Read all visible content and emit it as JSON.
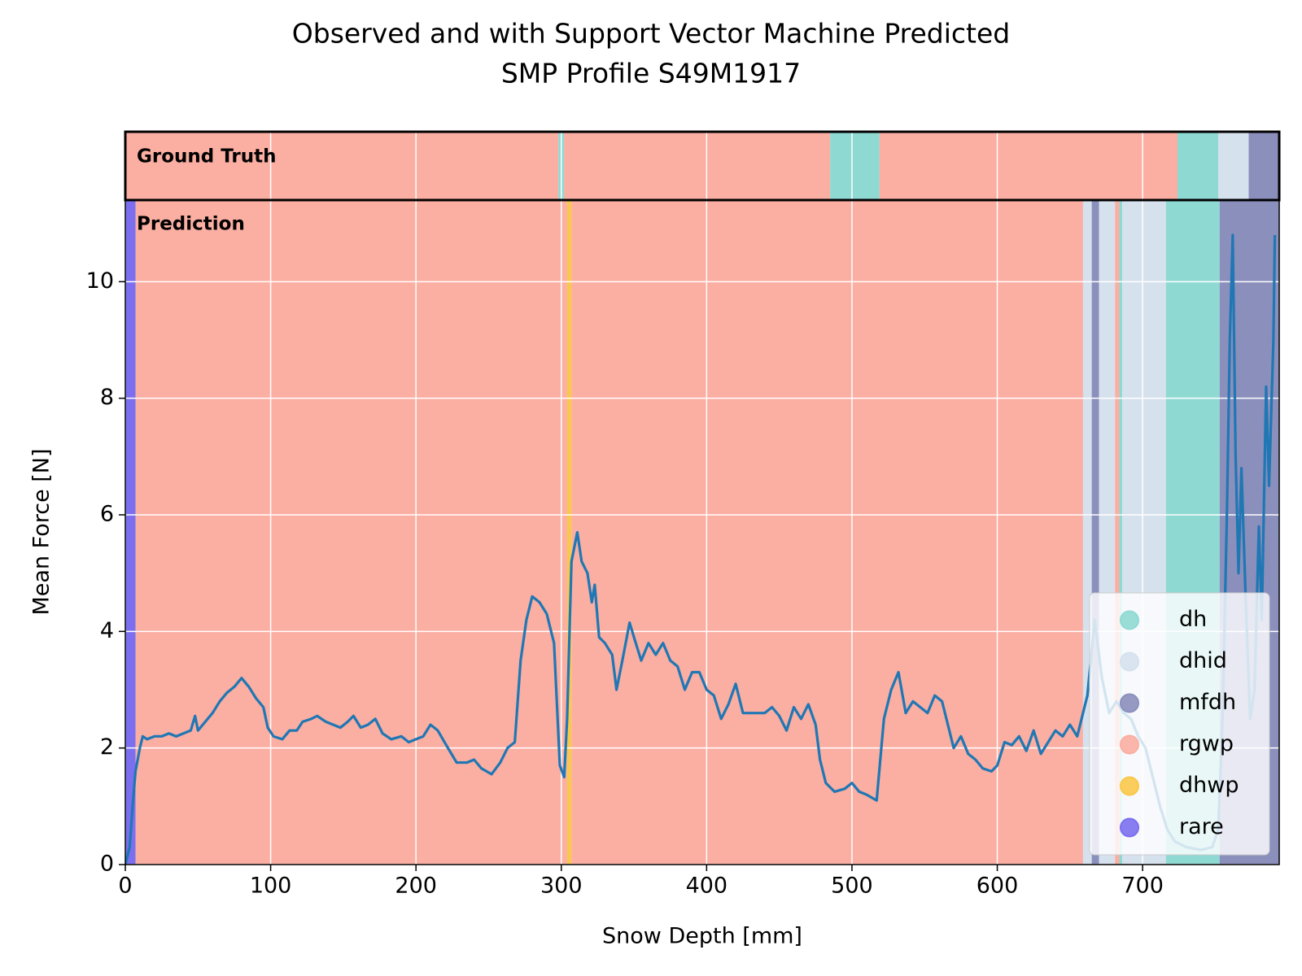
{
  "chart_data": {
    "type": "line",
    "title": [
      "Observed and with Support Vector Machine Predicted",
      "SMP Profile S49M1917"
    ],
    "xlabel": "Snow Depth [mm]",
    "ylabel": "Mean Force [N]",
    "annotations": [
      "Ground Truth",
      "Prediction"
    ],
    "xlim": [
      0,
      794
    ],
    "ylim": [
      0,
      11.4
    ],
    "xticks": [
      0,
      100,
      200,
      300,
      400,
      500,
      600,
      700
    ],
    "yticks": [
      0,
      2,
      4,
      6,
      8,
      10
    ],
    "grid": true,
    "legend_position": "lower right",
    "classes": [
      {
        "name": "dh",
        "color": "#8fd9d3"
      },
      {
        "name": "dhid",
        "color": "#d6e1ee"
      },
      {
        "name": "mfdh",
        "color": "#8b8fbc"
      },
      {
        "name": "rgwp",
        "color": "#fbaea2"
      },
      {
        "name": "dhwp",
        "color": "#f9c84a"
      },
      {
        "name": "rare",
        "color": "#7b6ff0"
      }
    ],
    "ground_truth": [
      {
        "class": "rgwp",
        "start": 0,
        "end": 298
      },
      {
        "class": "dh",
        "start": 298,
        "end": 302
      },
      {
        "class": "rgwp",
        "start": 302,
        "end": 485
      },
      {
        "class": "dh",
        "start": 485,
        "end": 519
      },
      {
        "class": "rgwp",
        "start": 519,
        "end": 724
      },
      {
        "class": "dh",
        "start": 724,
        "end": 752
      },
      {
        "class": "dhid",
        "start": 752,
        "end": 773
      },
      {
        "class": "mfdh",
        "start": 773,
        "end": 794
      }
    ],
    "prediction": [
      {
        "class": "rare",
        "start": 0,
        "end": 7
      },
      {
        "class": "rgwp",
        "start": 7,
        "end": 304
      },
      {
        "class": "dhwp",
        "start": 304,
        "end": 307
      },
      {
        "class": "rgwp",
        "start": 307,
        "end": 659
      },
      {
        "class": "dhid",
        "start": 659,
        "end": 665
      },
      {
        "class": "mfdh",
        "start": 665,
        "end": 670
      },
      {
        "class": "dhid",
        "start": 670,
        "end": 681
      },
      {
        "class": "rgwp",
        "start": 681,
        "end": 684
      },
      {
        "class": "dh",
        "start": 684,
        "end": 686
      },
      {
        "class": "dhid",
        "start": 686,
        "end": 716
      },
      {
        "class": "dh",
        "start": 716,
        "end": 753
      },
      {
        "class": "mfdh",
        "start": 753,
        "end": 794
      }
    ],
    "series": [
      {
        "name": "Mean Force",
        "color": "#1f77b4",
        "x": [
          0,
          3,
          5,
          7,
          10,
          12,
          15,
          20,
          25,
          30,
          35,
          40,
          45,
          48,
          50,
          55,
          60,
          65,
          70,
          75,
          80,
          85,
          90,
          95,
          98,
          102,
          108,
          113,
          118,
          122,
          128,
          132,
          138,
          143,
          148,
          153,
          157,
          162,
          167,
          172,
          177,
          183,
          190,
          195,
          200,
          205,
          210,
          215,
          222,
          228,
          235,
          240,
          245,
          252,
          258,
          263,
          268,
          272,
          276,
          280,
          285,
          290,
          295,
          299,
          302,
          304,
          307,
          311,
          314,
          318,
          321,
          323,
          326,
          330,
          335,
          338,
          342,
          347,
          350,
          355,
          360,
          365,
          370,
          375,
          380,
          385,
          390,
          395,
          400,
          405,
          410,
          415,
          420,
          425,
          430,
          440,
          445,
          450,
          455,
          460,
          465,
          470,
          475,
          478,
          482,
          488,
          495,
          500,
          505,
          510,
          517,
          522,
          527,
          532,
          537,
          542,
          547,
          552,
          557,
          562,
          566,
          570,
          575,
          580,
          585,
          590,
          596,
          600,
          605,
          610,
          615,
          620,
          625,
          630,
          635,
          640,
          645,
          650,
          655,
          658,
          662,
          667,
          672,
          677,
          682,
          687,
          692,
          697,
          702,
          707,
          712,
          717,
          722,
          730,
          740,
          748,
          752,
          755,
          758,
          760,
          762,
          764,
          766,
          768,
          771,
          774,
          777,
          780,
          782,
          785,
          787,
          790,
          791
        ],
        "values": [
          0,
          0.3,
          1.0,
          1.6,
          2.0,
          2.2,
          2.15,
          2.2,
          2.2,
          2.25,
          2.2,
          2.25,
          2.3,
          2.55,
          2.3,
          2.45,
          2.6,
          2.8,
          2.95,
          3.05,
          3.2,
          3.05,
          2.85,
          2.7,
          2.35,
          2.2,
          2.15,
          2.3,
          2.3,
          2.45,
          2.5,
          2.55,
          2.45,
          2.4,
          2.35,
          2.45,
          2.55,
          2.35,
          2.4,
          2.5,
          2.25,
          2.15,
          2.2,
          2.1,
          2.15,
          2.2,
          2.4,
          2.3,
          2.0,
          1.75,
          1.75,
          1.8,
          1.65,
          1.55,
          1.75,
          2.0,
          2.1,
          3.5,
          4.2,
          4.6,
          4.5,
          4.3,
          3.8,
          1.7,
          1.5,
          2.5,
          5.2,
          5.7,
          5.2,
          5.0,
          4.5,
          4.8,
          3.9,
          3.8,
          3.6,
          3.0,
          3.5,
          4.15,
          3.9,
          3.5,
          3.8,
          3.6,
          3.8,
          3.5,
          3.4,
          3.0,
          3.3,
          3.3,
          3.0,
          2.9,
          2.5,
          2.75,
          3.1,
          2.6,
          2.6,
          2.6,
          2.7,
          2.55,
          2.3,
          2.7,
          2.5,
          2.75,
          2.4,
          1.8,
          1.4,
          1.25,
          1.3,
          1.4,
          1.25,
          1.2,
          1.1,
          2.5,
          3.0,
          3.3,
          2.6,
          2.8,
          2.7,
          2.6,
          2.9,
          2.8,
          2.4,
          2.0,
          2.2,
          1.9,
          1.8,
          1.65,
          1.6,
          1.7,
          2.1,
          2.05,
          2.2,
          1.95,
          2.3,
          1.9,
          2.1,
          2.3,
          2.2,
          2.4,
          2.2,
          2.5,
          2.9,
          4.2,
          3.2,
          2.6,
          2.8,
          2.6,
          2.5,
          2.2,
          2.0,
          1.5,
          1.0,
          0.6,
          0.4,
          0.3,
          0.25,
          0.3,
          0.6,
          2.5,
          6.0,
          9.0,
          10.8,
          7.0,
          5.0,
          6.8,
          4.5,
          2.5,
          3.0,
          5.8,
          4.2,
          8.2,
          6.5,
          9.0,
          10.8
        ]
      }
    ]
  }
}
